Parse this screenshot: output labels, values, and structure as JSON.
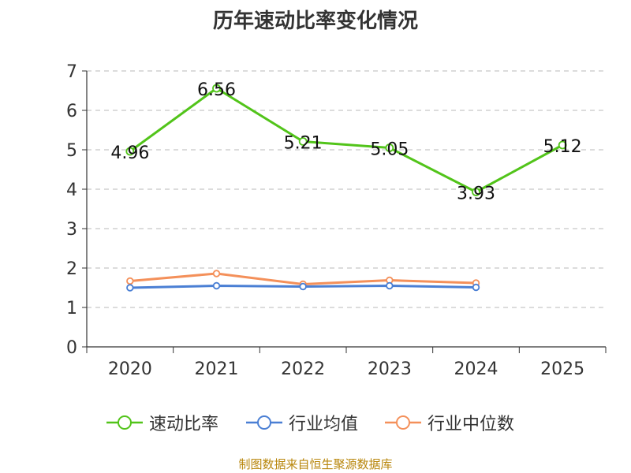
{
  "chart_data": {
    "type": "line",
    "title": "历年速动比率变化情况",
    "categories": [
      "2020",
      "2021",
      "2022",
      "2023",
      "2024",
      "2025"
    ],
    "ylim": [
      0,
      7
    ],
    "yticks": [
      0,
      1,
      2,
      3,
      4,
      5,
      6,
      7
    ],
    "grid": true,
    "legend_position": "bottom",
    "series": [
      {
        "name": "速动比率",
        "color": "#52c41a",
        "values": [
          4.96,
          6.56,
          5.21,
          5.05,
          3.93,
          5.12
        ],
        "labels": [
          "4.96",
          "6.56",
          "5.21",
          "5.05",
          "3.93",
          "5.12"
        ]
      },
      {
        "name": "行业均值",
        "color": "#4a7fd4",
        "values": [
          1.5,
          1.55,
          1.53,
          1.55,
          1.51,
          null
        ]
      },
      {
        "name": "行业中位数",
        "color": "#f4905a",
        "values": [
          1.67,
          1.86,
          1.59,
          1.69,
          1.62,
          null
        ]
      }
    ]
  },
  "source_text": "制图数据来自恒生聚源数据库"
}
